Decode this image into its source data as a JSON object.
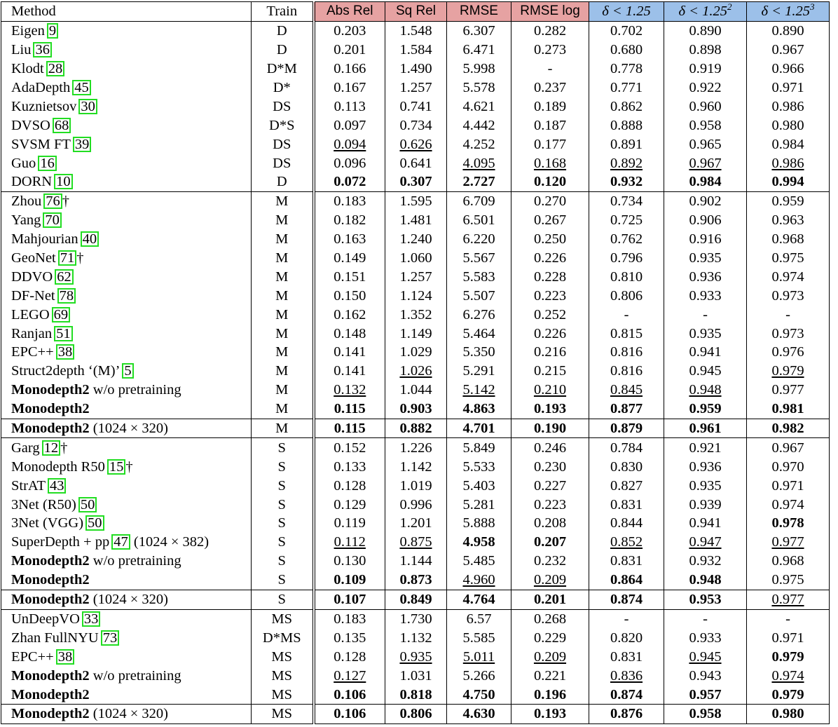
{
  "header": {
    "method": "Method",
    "train": "Train",
    "metrics": [
      "Abs Rel",
      "Sq Rel",
      "RMSE",
      "RMSE log",
      "δ < 1.25",
      "δ < 1.25",
      "δ < 1.25"
    ],
    "sup": [
      "",
      "",
      "",
      "",
      "",
      "2",
      "3"
    ],
    "metric_colors": {
      "lower_is_better": "#e6a2a2",
      "higher_is_better": "#9cc0e9"
    }
  },
  "rows": [
    {
      "name": "Eigen",
      "ref": "9",
      "suffix": "",
      "train": "D",
      "values": [
        "0.203",
        "1.548",
        "6.307",
        "0.282",
        "0.702",
        "0.890",
        "0.890"
      ],
      "bold": [],
      "underline": []
    },
    {
      "name": "Liu",
      "ref": "36",
      "suffix": "",
      "train": "D",
      "values": [
        "0.201",
        "1.584",
        "6.471",
        "0.273",
        "0.680",
        "0.898",
        "0.967"
      ],
      "bold": [],
      "underline": []
    },
    {
      "name": "Klodt",
      "ref": "28",
      "suffix": "",
      "train": "D*M",
      "values": [
        "0.166",
        "1.490",
        "5.998",
        "-",
        "0.778",
        "0.919",
        "0.966"
      ],
      "bold": [],
      "underline": []
    },
    {
      "name": "AdaDepth",
      "ref": "45",
      "suffix": "",
      "train": "D*",
      "values": [
        "0.167",
        "1.257",
        "5.578",
        "0.237",
        "0.771",
        "0.922",
        "0.971"
      ],
      "bold": [],
      "underline": []
    },
    {
      "name": "Kuznietsov",
      "ref": "30",
      "suffix": "",
      "train": "DS",
      "values": [
        "0.113",
        "0.741",
        "4.621",
        "0.189",
        "0.862",
        "0.960",
        "0.986"
      ],
      "bold": [],
      "underline": []
    },
    {
      "name": "DVSO",
      "ref": "68",
      "suffix": "",
      "train": "D*S",
      "values": [
        "0.097",
        "0.734",
        "4.442",
        "0.187",
        "0.888",
        "0.958",
        "0.980"
      ],
      "bold": [],
      "underline": []
    },
    {
      "name": "SVSM FT",
      "ref": "39",
      "suffix": "",
      "train": "DS",
      "values": [
        "0.094",
        "0.626",
        "4.252",
        "0.177",
        "0.891",
        "0.965",
        "0.984"
      ],
      "bold": [],
      "underline": [
        0,
        1
      ]
    },
    {
      "name": "Guo",
      "ref": "16",
      "suffix": "",
      "train": "DS",
      "values": [
        "0.096",
        "0.641",
        "4.095",
        "0.168",
        "0.892",
        "0.967",
        "0.986"
      ],
      "bold": [],
      "underline": [
        2,
        3,
        4,
        5,
        6
      ]
    },
    {
      "name": "DORN",
      "ref": "10",
      "suffix": "",
      "train": "D",
      "values": [
        "0.072",
        "0.307",
        "2.727",
        "0.120",
        "0.932",
        "0.984",
        "0.994"
      ],
      "bold": [
        0,
        1,
        2,
        3,
        4,
        5,
        6
      ],
      "underline": []
    },
    {
      "group_start": true,
      "name": "Zhou",
      "ref": "76",
      "suffix": "†",
      "train": "M",
      "values": [
        "0.183",
        "1.595",
        "6.709",
        "0.270",
        "0.734",
        "0.902",
        "0.959"
      ],
      "bold": [],
      "underline": []
    },
    {
      "name": "Yang",
      "ref": "70",
      "suffix": "",
      "train": "M",
      "values": [
        "0.182",
        "1.481",
        "6.501",
        "0.267",
        "0.725",
        "0.906",
        "0.963"
      ],
      "bold": [],
      "underline": []
    },
    {
      "name": "Mahjourian",
      "ref": "40",
      "suffix": "",
      "train": "M",
      "values": [
        "0.163",
        "1.240",
        "6.220",
        "0.250",
        "0.762",
        "0.916",
        "0.968"
      ],
      "bold": [],
      "underline": []
    },
    {
      "name": "GeoNet",
      "ref": "71",
      "suffix": "†",
      "train": "M",
      "values": [
        "0.149",
        "1.060",
        "5.567",
        "0.226",
        "0.796",
        "0.935",
        "0.975"
      ],
      "bold": [],
      "underline": []
    },
    {
      "name": "DDVO",
      "ref": "62",
      "suffix": "",
      "train": "M",
      "values": [
        "0.151",
        "1.257",
        "5.583",
        "0.228",
        "0.810",
        "0.936",
        "0.974"
      ],
      "bold": [],
      "underline": []
    },
    {
      "name": "DF-Net",
      "ref": "78",
      "suffix": "",
      "train": "M",
      "values": [
        "0.150",
        "1.124",
        "5.507",
        "0.223",
        "0.806",
        "0.933",
        "0.973"
      ],
      "bold": [],
      "underline": []
    },
    {
      "name": "LEGO",
      "ref": "69",
      "suffix": "",
      "train": "M",
      "values": [
        "0.162",
        "1.352",
        "6.276",
        "0.252",
        "-",
        "-",
        "-"
      ],
      "bold": [],
      "underline": []
    },
    {
      "name": "Ranjan",
      "ref": "51",
      "suffix": "",
      "train": "M",
      "values": [
        "0.148",
        "1.149",
        "5.464",
        "0.226",
        "0.815",
        "0.935",
        "0.973"
      ],
      "bold": [],
      "underline": []
    },
    {
      "name": "EPC++",
      "ref": "38",
      "suffix": "",
      "train": "M",
      "values": [
        "0.141",
        "1.029",
        "5.350",
        "0.216",
        "0.816",
        "0.941",
        "0.976"
      ],
      "bold": [],
      "underline": []
    },
    {
      "name": "Struct2depth ‘(M)’",
      "ref": "5",
      "suffix": "",
      "train": "M",
      "values": [
        "0.141",
        "1.026",
        "5.291",
        "0.215",
        "0.816",
        "0.945",
        "0.979"
      ],
      "bold": [],
      "underline": [
        1,
        6
      ]
    },
    {
      "name": "Monodepth2",
      "name_bold": true,
      "ref": "",
      "suffix": " w/o pretraining",
      "train": "M",
      "values": [
        "0.132",
        "1.044",
        "5.142",
        "0.210",
        "0.845",
        "0.948",
        "0.977"
      ],
      "bold": [],
      "underline": [
        0,
        2,
        3,
        4,
        5
      ]
    },
    {
      "name": "Monodepth2",
      "name_bold": true,
      "ref": "",
      "suffix": "",
      "train": "M",
      "values": [
        "0.115",
        "0.903",
        "4.863",
        "0.193",
        "0.877",
        "0.959",
        "0.981"
      ],
      "bold": [
        0,
        1,
        2,
        3,
        4,
        5,
        6
      ],
      "underline": []
    },
    {
      "group_start": true,
      "name": "Monodepth2",
      "name_bold": true,
      "ref": "",
      "suffix": " (1024 × 320)",
      "train": "M",
      "values": [
        "0.115",
        "0.882",
        "4.701",
        "0.190",
        "0.879",
        "0.961",
        "0.982"
      ],
      "bold": [
        0,
        1,
        2,
        3,
        4,
        5,
        6
      ],
      "underline": []
    },
    {
      "group_start": true,
      "name": "Garg",
      "ref": "12",
      "suffix": "†",
      "train": "S",
      "values": [
        "0.152",
        "1.226",
        "5.849",
        "0.246",
        "0.784",
        "0.921",
        "0.967"
      ],
      "bold": [],
      "underline": []
    },
    {
      "name": "Monodepth R50",
      "ref": "15",
      "suffix": "†",
      "train": "S",
      "values": [
        "0.133",
        "1.142",
        "5.533",
        "0.230",
        "0.830",
        "0.936",
        "0.970"
      ],
      "bold": [],
      "underline": []
    },
    {
      "name": "StrAT",
      "ref": "43",
      "suffix": "",
      "train": "S",
      "values": [
        "0.128",
        "1.019",
        "5.403",
        "0.227",
        "0.827",
        "0.935",
        "0.971"
      ],
      "bold": [],
      "underline": []
    },
    {
      "name": "3Net (R50)",
      "ref": "50",
      "suffix": "",
      "train": "S",
      "values": [
        "0.129",
        "0.996",
        "5.281",
        "0.223",
        "0.831",
        "0.939",
        "0.974"
      ],
      "bold": [],
      "underline": []
    },
    {
      "name": "3Net (VGG)",
      "ref": "50",
      "suffix": "",
      "train": "S",
      "values": [
        "0.119",
        "1.201",
        "5.888",
        "0.208",
        "0.844",
        "0.941",
        "0.978"
      ],
      "bold": [
        6
      ],
      "underline": []
    },
    {
      "name": "SuperDepth + pp",
      "ref": "47",
      "suffix": " (1024 × 382)",
      "train": "S",
      "values": [
        "0.112",
        "0.875",
        "4.958",
        "0.207",
        "0.852",
        "0.947",
        "0.977"
      ],
      "bold": [
        2,
        3
      ],
      "underline": [
        0,
        1,
        4,
        5,
        6
      ]
    },
    {
      "name": "Monodepth2",
      "name_bold": true,
      "ref": "",
      "suffix": " w/o pretraining",
      "train": "S",
      "values": [
        "0.130",
        "1.144",
        "5.485",
        "0.232",
        "0.831",
        "0.932",
        "0.968"
      ],
      "bold": [],
      "underline": []
    },
    {
      "name": "Monodepth2",
      "name_bold": true,
      "ref": "",
      "suffix": "",
      "train": "S",
      "values": [
        "0.109",
        "0.873",
        "4.960",
        "0.209",
        "0.864",
        "0.948",
        "0.975"
      ],
      "bold": [
        0,
        1,
        4,
        5
      ],
      "underline": [
        2,
        3
      ]
    },
    {
      "group_start": true,
      "name": "Monodepth2",
      "name_bold": true,
      "ref": "",
      "suffix": " (1024 × 320)",
      "train": "S",
      "values": [
        "0.107",
        "0.849",
        "4.764",
        "0.201",
        "0.874",
        "0.953",
        "0.977"
      ],
      "bold": [
        0,
        1,
        2,
        3,
        4,
        5
      ],
      "underline": [
        6
      ]
    },
    {
      "group_start": true,
      "name": "UnDeepVO",
      "ref": "33",
      "suffix": "",
      "train": "MS",
      "values": [
        "0.183",
        "1.730",
        "6.57",
        "0.268",
        "-",
        "-",
        "-"
      ],
      "bold": [],
      "underline": []
    },
    {
      "name": "Zhan FullNYU",
      "ref": "73",
      "suffix": "",
      "train": "D*MS",
      "values": [
        "0.135",
        "1.132",
        "5.585",
        "0.229",
        "0.820",
        "0.933",
        "0.971"
      ],
      "bold": [],
      "underline": []
    },
    {
      "name": "EPC++",
      "ref": "38",
      "suffix": "",
      "train": "MS",
      "values": [
        "0.128",
        "0.935",
        "5.011",
        "0.209",
        "0.831",
        "0.945",
        "0.979"
      ],
      "bold": [
        6
      ],
      "underline": [
        1,
        2,
        3,
        5
      ]
    },
    {
      "name": "Monodepth2",
      "name_bold": true,
      "ref": "",
      "suffix": " w/o pretraining",
      "train": "MS",
      "values": [
        "0.127",
        "1.031",
        "5.266",
        "0.221",
        "0.836",
        "0.943",
        "0.974"
      ],
      "bold": [],
      "underline": [
        0,
        4,
        6
      ]
    },
    {
      "name": "Monodepth2",
      "name_bold": true,
      "ref": "",
      "suffix": "",
      "train": "MS",
      "values": [
        "0.106",
        "0.818",
        "4.750",
        "0.196",
        "0.874",
        "0.957",
        "0.979"
      ],
      "bold": [
        0,
        1,
        2,
        3,
        4,
        5,
        6
      ],
      "underline": []
    },
    {
      "group_start": true,
      "name": "Monodepth2",
      "name_bold": true,
      "ref": "",
      "suffix": " (1024 × 320)",
      "train": "MS",
      "values": [
        "0.106",
        "0.806",
        "4.630",
        "0.193",
        "0.876",
        "0.958",
        "0.980"
      ],
      "bold": [
        0,
        1,
        2,
        3,
        4,
        5,
        6
      ],
      "underline": []
    }
  ]
}
